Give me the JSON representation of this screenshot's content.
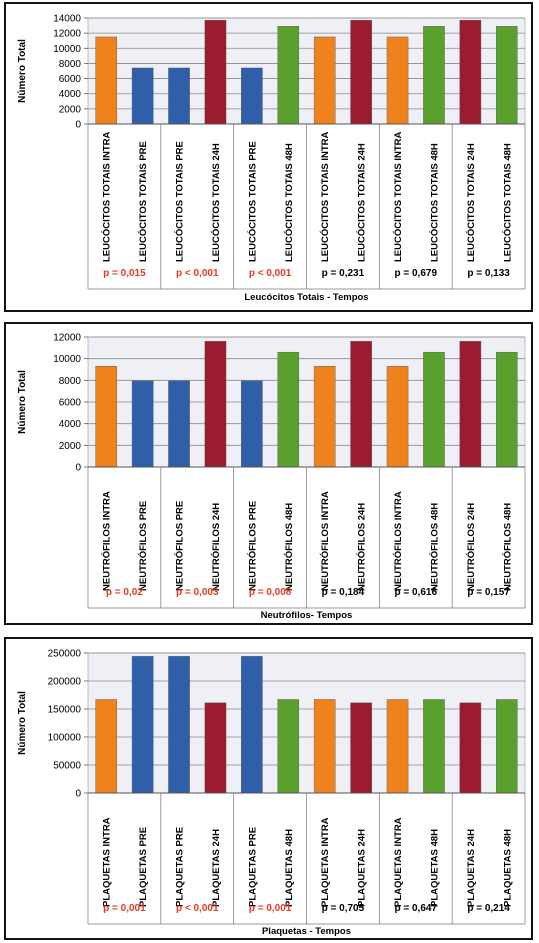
{
  "palette": {
    "INTRA": "#f0821e",
    "PRE": "#2f5fa8",
    "24H": "#9b1c2e",
    "48H": "#5aa02c",
    "significant_p": "#e63a1f",
    "plain_p": "#000000"
  },
  "chart_data": [
    {
      "type": "bar",
      "ylabel": "Número Total",
      "xlabel": "Leucócitos Totais - Tempos",
      "ylim": [
        0,
        14000
      ],
      "yticks": [
        "0",
        "2000",
        "4000",
        "6000",
        "8000",
        "10000",
        "12000",
        "14000"
      ],
      "grid": true,
      "categories": [
        "LEUCÓCITOS TOTAIS INTRA",
        "LEUCÓCITOS TOTAIS PRE",
        "LEUCÓCITOS TOTAIS PRE",
        "LEUCÓCITOS TOTAIS 24H",
        "LEUCÓCITOS TOTAIS PRE",
        "LEUCÓCITOS TOTAIS 48H",
        "LEUCÓCITOS TOTAIS INTRA",
        "LEUCÓCITOS TOTAIS 24H",
        "LEUCÓCITOS TOTAIS INTRA",
        "LEUCÓCITOS TOTAIS 48H",
        "LEUCÓCITOS TOTAIS 24H",
        "LEUCÓCITOS TOTAIS 48H"
      ],
      "groups": [
        "INTRA",
        "PRE",
        "PRE",
        "24H",
        "PRE",
        "48H",
        "INTRA",
        "24H",
        "INTRA",
        "48H",
        "24H",
        "48H"
      ],
      "values": [
        11500,
        7400,
        7400,
        13700,
        7400,
        12900,
        11500,
        13700,
        11500,
        12900,
        13700,
        12900
      ],
      "p_values": [
        "p = 0,015",
        "p < 0,001",
        "p < 0,001",
        "p = 0,231",
        "p = 0,679",
        "p = 0,133"
      ],
      "p_significant": [
        true,
        true,
        true,
        false,
        false,
        false
      ]
    },
    {
      "type": "bar",
      "ylabel": "Número Total",
      "xlabel": "Neutrófilos- Tempos",
      "ylim": [
        0,
        12000
      ],
      "yticks": [
        "0",
        "2000",
        "4000",
        "6000",
        "8000",
        "10000",
        "12000"
      ],
      "grid": true,
      "categories": [
        "NEUTRÓFILOS INTRA",
        "NEUTRÓFILOS PRE",
        "NEUTRÓFILOS PRE",
        "NEUTRÓFILOS 24H",
        "NEUTRÓFILOS PRE",
        "NEUTRÓFILOS 48H",
        "NEUTRÓFILOS INTRA",
        "NEUTRÓFILOS 24H",
        "NEUTRÓFILOS INTRA",
        "NEUTRÓFILOS 48H",
        "NEUTRÓFILOS 24H",
        "NEUTRÓFILOS 48H"
      ],
      "groups": [
        "INTRA",
        "PRE",
        "PRE",
        "24H",
        "PRE",
        "48H",
        "INTRA",
        "24H",
        "INTRA",
        "48H",
        "24H",
        "48H"
      ],
      "values": [
        9300,
        7950,
        7950,
        11600,
        7950,
        10600,
        9300,
        11600,
        9300,
        10600,
        11600,
        10600
      ],
      "p_values": [
        "p = 0,02",
        "p = 0,003",
        "p = 0,008",
        "p = 0,184",
        "p = 0,616",
        "p = 0,157"
      ],
      "p_significant": [
        true,
        true,
        true,
        false,
        false,
        false
      ]
    },
    {
      "type": "bar",
      "ylabel": "Número Total",
      "xlabel": "Plaquetas - Tempos",
      "ylim": [
        0,
        250000
      ],
      "yticks": [
        "0",
        "50000",
        "100000",
        "150000",
        "200000",
        "250000"
      ],
      "grid": true,
      "categories": [
        "PLAQUETAS INTRA",
        "PLAQUETAS PRE",
        "PLAQUETAS PRE",
        "PLAQUETAS 24H",
        "PLAQUETAS PRE",
        "PLAQUETAS 48H",
        "PLAQUETAS INTRA",
        "PLAQUETAS 24H",
        "PLAQUETAS INTRA",
        "PLAQUETAS 48H",
        "PLAQUETAS 24H",
        "PLAQUETAS 48H"
      ],
      "groups": [
        "INTRA",
        "PRE",
        "PRE",
        "24H",
        "PRE",
        "48H",
        "INTRA",
        "24H",
        "INTRA",
        "48H",
        "24H",
        "48H"
      ],
      "values": [
        167000,
        244000,
        244000,
        161000,
        244000,
        167000,
        167000,
        161000,
        167000,
        167000,
        161000,
        167000
      ],
      "p_values": [
        "p = 0,001",
        "p < 0,001",
        "p = 0,001",
        "p = 0,705",
        "p = 0,647",
        "p = 0,214"
      ],
      "p_significant": [
        true,
        true,
        true,
        false,
        false,
        false
      ]
    }
  ]
}
